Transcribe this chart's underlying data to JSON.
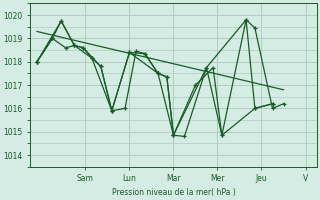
{
  "background_color": "#d4ece4",
  "grid_color": "#b0ccbf",
  "line_color": "#1a5c28",
  "ylabel": "Pression niveau de la mer( hPa )",
  "ylim": [
    1013.5,
    1020.5
  ],
  "xlim": [
    0,
    13
  ],
  "yticks": [
    1014,
    1015,
    1016,
    1017,
    1018,
    1019,
    1020
  ],
  "day_labels": [
    "Sam",
    "Lun",
    "Mar",
    "Mer",
    "Jeu",
    "V"
  ],
  "day_positions": [
    2.5,
    4.5,
    6.5,
    8.5,
    10.5,
    12.5
  ],
  "series1_x": [
    0.3,
    1.0,
    1.4,
    2.0,
    2.4,
    2.8,
    3.2,
    3.7,
    4.3,
    4.8,
    5.2,
    5.8,
    6.2,
    6.5,
    7.0,
    8.0,
    8.7,
    9.8,
    10.2,
    11.0,
    11.5
  ],
  "series1_y": [
    1018.0,
    1019.0,
    1019.75,
    1018.7,
    1018.6,
    1018.15,
    1017.8,
    1015.9,
    1016.0,
    1018.45,
    1018.35,
    1017.5,
    1017.35,
    1014.85,
    1014.8,
    1017.75,
    1014.85,
    1019.8,
    1019.45,
    1016.0,
    1016.2
  ],
  "series2_x": [
    0.3,
    1.4,
    2.0,
    2.4,
    3.2,
    3.7,
    4.5,
    5.8,
    6.5,
    8.0,
    9.8,
    10.2,
    11.0
  ],
  "series2_y": [
    1018.0,
    1019.75,
    1018.7,
    1018.6,
    1017.8,
    1015.9,
    1018.4,
    1017.5,
    1014.85,
    1017.75,
    1019.8,
    1016.0,
    1016.2
  ],
  "series3_x": [
    0.3,
    1.0,
    1.6,
    2.0,
    2.8,
    3.7,
    4.5,
    5.2,
    5.8,
    6.2,
    6.5,
    7.5,
    8.3,
    8.7,
    10.2,
    11.0
  ],
  "series3_y": [
    1018.0,
    1019.0,
    1018.6,
    1018.7,
    1018.15,
    1015.9,
    1018.4,
    1018.35,
    1017.5,
    1017.35,
    1014.85,
    1017.0,
    1017.75,
    1014.85,
    1016.0,
    1016.2
  ],
  "trend_x": [
    0.3,
    11.5
  ],
  "trend_y": [
    1019.3,
    1016.8
  ]
}
